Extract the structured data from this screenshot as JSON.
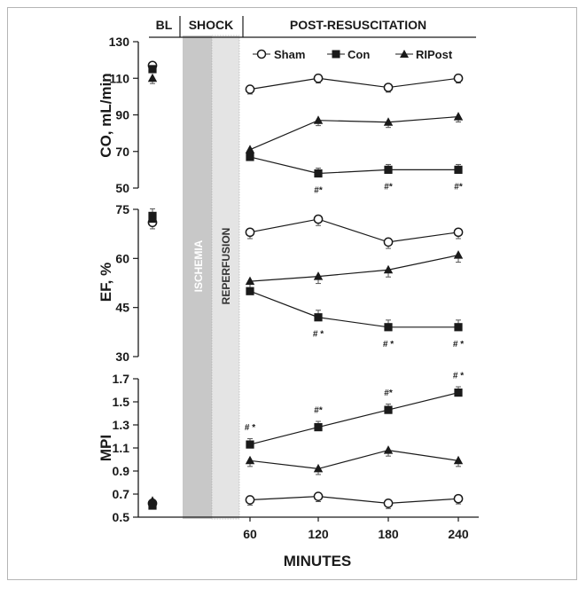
{
  "phases": {
    "bl": "BL",
    "shock": "SHOCK",
    "post": "POST-RESUSCITATION",
    "ischemia": "ISCHEMIA",
    "reperfusion": "REPERFUSION"
  },
  "legend": [
    {
      "name": "Sham",
      "marker": "circle-open"
    },
    {
      "name": "Con",
      "marker": "square-filled"
    },
    {
      "name": "RIPost",
      "marker": "triangle-filled"
    }
  ],
  "colors": {
    "ink": "#1a1a1a",
    "ischemia_band": "#c8c8c8",
    "reperfusion_band": "#e4e4e4",
    "frame": "#b5b5b5"
  },
  "chart_data": [
    {
      "type": "line",
      "ylabel": "CO, mL/min",
      "ylim": [
        50,
        130
      ],
      "yticks": [
        "50",
        "70",
        "90",
        "110",
        "130"
      ],
      "x": [
        60,
        120,
        180,
        240
      ],
      "baseline": {
        "Sham": 117,
        "Con": 115,
        "RIPost": 110
      },
      "series": [
        {
          "name": "Sham",
          "values": [
            104,
            110,
            105,
            110
          ]
        },
        {
          "name": "Con",
          "values": [
            67,
            58,
            60,
            60
          ]
        },
        {
          "name": "RIPost",
          "values": [
            71,
            87,
            86,
            89
          ]
        }
      ],
      "annotations": [
        {
          "x": 120,
          "text": "#*"
        },
        {
          "x": 180,
          "text": "#*"
        },
        {
          "x": 240,
          "text": "#*"
        }
      ]
    },
    {
      "type": "line",
      "ylabel": "EF, %",
      "ylim": [
        30,
        75
      ],
      "yticks": [
        "30",
        "45",
        "60",
        "75"
      ],
      "x": [
        60,
        120,
        180,
        240
      ],
      "baseline": {
        "Sham": 71,
        "Con": 73,
        "RIPost": 72
      },
      "series": [
        {
          "name": "Sham",
          "values": [
            68,
            72,
            65,
            68
          ]
        },
        {
          "name": "Con",
          "values": [
            50,
            42,
            39,
            39
          ]
        },
        {
          "name": "RIPost",
          "values": [
            53,
            54.5,
            56.5,
            61
          ]
        }
      ],
      "annotations": [
        {
          "x": 120,
          "text": "# *"
        },
        {
          "x": 180,
          "text": "# *"
        },
        {
          "x": 240,
          "text": "# *"
        }
      ]
    },
    {
      "type": "line",
      "ylabel": "MPI",
      "ylim": [
        0.5,
        1.7
      ],
      "yticks": [
        "0.5",
        "0.7",
        "0.9",
        "1.1",
        "1.3",
        "1.5",
        "1.7"
      ],
      "x": [
        60,
        120,
        180,
        240
      ],
      "baseline": {
        "Sham": 0.62,
        "Con": 0.6,
        "RIPost": 0.64
      },
      "series": [
        {
          "name": "Sham",
          "values": [
            0.65,
            0.68,
            0.62,
            0.66
          ]
        },
        {
          "name": "Con",
          "values": [
            1.13,
            1.28,
            1.43,
            1.58
          ]
        },
        {
          "name": "RIPost",
          "values": [
            0.99,
            0.92,
            1.08,
            0.99
          ]
        }
      ],
      "annotations": [
        {
          "x": 60,
          "text": "# *"
        },
        {
          "x": 120,
          "text": "#*"
        },
        {
          "x": 180,
          "text": "#*"
        },
        {
          "x": 240,
          "text": "# *"
        }
      ]
    }
  ],
  "xticks": [
    "60",
    "120",
    "180",
    "240"
  ],
  "xlabel": "MINUTES"
}
